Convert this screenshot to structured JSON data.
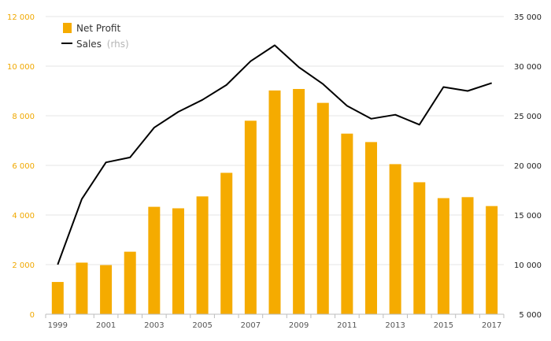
{
  "chart_data": {
    "type": "bar",
    "x": [
      "1999",
      "2000",
      "2001",
      "2002",
      "2003",
      "2004",
      "2005",
      "2006",
      "2007",
      "2008",
      "2009",
      "2010",
      "2011",
      "2012",
      "2013",
      "2014",
      "2015",
      "2016",
      "2017"
    ],
    "x_tick_labels": [
      "1999",
      "2001",
      "2003",
      "2005",
      "2007",
      "2009",
      "2011",
      "2013",
      "2015",
      "2017"
    ],
    "series": [
      {
        "name": "Net Profit",
        "type": "bar",
        "axis": "left",
        "color": "#f5ab00",
        "values": [
          1300,
          2080,
          1980,
          2520,
          4330,
          4270,
          4750,
          5700,
          7800,
          9020,
          9080,
          8520,
          7280,
          6940,
          6050,
          5320,
          4680,
          4720,
          4360
        ]
      },
      {
        "name": "Sales",
        "name_suffix": "(rhs)",
        "type": "line",
        "axis": "right",
        "color": "#000000",
        "values": [
          10000,
          16600,
          20300,
          20800,
          23800,
          25400,
          26600,
          28100,
          30500,
          32100,
          29900,
          28200,
          26000,
          24700,
          25100,
          24100,
          27900,
          27500,
          28300
        ]
      }
    ],
    "y_left": {
      "min": 0,
      "max": 12000,
      "ticks": [
        "0",
        "2 000",
        "4 000",
        "6 000",
        "8 000",
        "10 000",
        "12 000"
      ],
      "color": "#f0a800"
    },
    "y_right": {
      "min": 5000,
      "max": 35000,
      "ticks": [
        "5 000",
        "10 000",
        "15 000",
        "20 000",
        "25 000",
        "30 000",
        "35 000"
      ],
      "color": "#222222"
    },
    "grid": true,
    "legend_position": "top-left"
  }
}
